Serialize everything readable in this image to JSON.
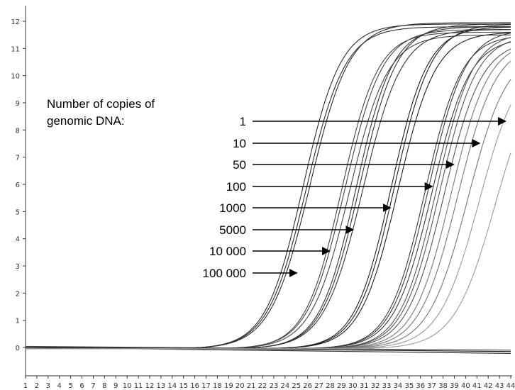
{
  "chart_data": {
    "type": "line",
    "title": "",
    "xlabel": "",
    "ylabel": "",
    "xlim": [
      1,
      44
    ],
    "ylim": [
      0,
      12
    ],
    "x_ticks": [
      1,
      2,
      3,
      4,
      5,
      6,
      7,
      8,
      9,
      10,
      11,
      12,
      13,
      14,
      15,
      16,
      17,
      18,
      19,
      20,
      21,
      22,
      23,
      24,
      25,
      26,
      27,
      28,
      29,
      30,
      31,
      32,
      33,
      34,
      35,
      36,
      37,
      38,
      39,
      40,
      41,
      42,
      43,
      44
    ],
    "y_ticks": [
      0,
      1,
      2,
      3,
      4,
      5,
      6,
      7,
      8,
      9,
      10,
      11,
      12
    ],
    "grid": false,
    "annotation_lines": [
      "Number of copies of",
      "genomic DNA:"
    ],
    "series": [
      {
        "label": "100 000",
        "arrow_x": 25.0,
        "arrow_y": 2.8,
        "color": "#2b2b2b",
        "curves": [
          {
            "mid": 25.6,
            "k": 0.6,
            "top": 11.9
          },
          {
            "mid": 25.9,
            "k": 0.58,
            "top": 11.8
          },
          {
            "mid": 26.2,
            "k": 0.57,
            "top": 11.95
          }
        ]
      },
      {
        "label": "10 000",
        "arrow_x": 27.9,
        "arrow_y": 3.5,
        "color": "#444444",
        "curves": [
          {
            "mid": 29.0,
            "k": 0.62,
            "top": 11.6
          },
          {
            "mid": 29.3,
            "k": 0.6,
            "top": 11.7
          },
          {
            "mid": 29.7,
            "k": 0.59,
            "top": 11.5
          }
        ]
      },
      {
        "label": "5000",
        "arrow_x": 30.0,
        "arrow_y": 4.35,
        "color": "#333333",
        "curves": [
          {
            "mid": 30.3,
            "k": 0.62,
            "top": 11.8
          },
          {
            "mid": 30.6,
            "k": 0.6,
            "top": 11.9
          },
          {
            "mid": 30.9,
            "k": 0.58,
            "top": 11.7
          }
        ]
      },
      {
        "label": "1000",
        "arrow_x": 33.3,
        "arrow_y": 5.15,
        "color": "#1e1e1e",
        "curves": [
          {
            "mid": 33.4,
            "k": 0.62,
            "top": 11.8
          },
          {
            "mid": 33.7,
            "k": 0.61,
            "top": 11.9
          },
          {
            "mid": 34.0,
            "k": 0.6,
            "top": 11.6
          }
        ]
      },
      {
        "label": "100",
        "arrow_x": 37.0,
        "arrow_y": 6.15,
        "color": "#3a3a3a",
        "curves": [
          {
            "mid": 36.4,
            "k": 0.62,
            "top": 11.5
          },
          {
            "mid": 36.7,
            "k": 0.61,
            "top": 11.7
          },
          {
            "mid": 37.0,
            "k": 0.6,
            "top": 11.4
          }
        ]
      },
      {
        "label": "50",
        "arrow_x": 38.9,
        "arrow_y": 6.8,
        "color": "#555555",
        "curves": [
          {
            "mid": 37.4,
            "k": 0.62,
            "top": 11.6
          },
          {
            "mid": 37.7,
            "k": 0.61,
            "top": 11.5
          },
          {
            "mid": 38.1,
            "k": 0.6,
            "top": 11.3
          }
        ]
      },
      {
        "label": "10",
        "arrow_x": 41.2,
        "arrow_y": 7.7,
        "color": "#777777",
        "curves": [
          {
            "mid": 38.7,
            "k": 0.6,
            "top": 11.3
          },
          {
            "mid": 39.3,
            "k": 0.59,
            "top": 11.2
          },
          {
            "mid": 40.2,
            "k": 0.57,
            "top": 11.0
          }
        ]
      },
      {
        "label": "1",
        "arrow_x": 43.8,
        "arrow_y": 8.45,
        "color": "#999999",
        "curves": [
          {
            "mid": 41.2,
            "k": 0.56,
            "top": 10.8
          },
          {
            "mid": 42.6,
            "k": 0.55,
            "top": 10.5
          }
        ]
      }
    ],
    "baselines": [
      {
        "y0": 0.02,
        "y1": -0.15,
        "color": "#1a1a1a"
      },
      {
        "y0": 0.0,
        "y1": -0.22,
        "color": "#333333"
      },
      {
        "y0": 0.04,
        "y1": -0.1,
        "color": "#4a4a4a"
      }
    ]
  }
}
